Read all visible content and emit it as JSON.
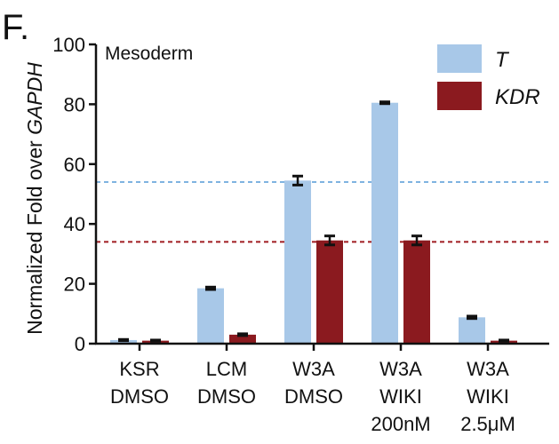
{
  "panel_letter": "F.",
  "chart_data": {
    "type": "bar",
    "annotation": "Mesoderm",
    "ylabel_prefix": "Normalized Fold over ",
    "ylabel_gene": "GAPDH",
    "ylim": [
      0,
      100
    ],
    "yticks": [
      0,
      20,
      40,
      60,
      80,
      100
    ],
    "categories": [
      [
        "KSR",
        "DMSO"
      ],
      [
        "LCM",
        "DMSO"
      ],
      [
        "W3A",
        "DMSO"
      ],
      [
        "W3A",
        "WIKI",
        "200nM"
      ],
      [
        "W3A",
        "WIKI",
        "2.5μM"
      ]
    ],
    "series": [
      {
        "name": "T",
        "color": "#a8c8e8",
        "error_color": "#111111",
        "values": [
          1.2,
          18.5,
          54.5,
          80.5,
          8.8
        ],
        "errors": [
          0.2,
          0.4,
          1.5,
          0.3,
          0.4
        ]
      },
      {
        "name": "KDR",
        "color": "#8b1a1f",
        "error_color": "#111111",
        "values": [
          1.0,
          3.0,
          34.5,
          34.5,
          1.0
        ],
        "errors": [
          0.2,
          0.3,
          1.5,
          1.5,
          0.2
        ]
      }
    ],
    "reference_lines": [
      {
        "value": 54.0,
        "color": "#7fb3e0"
      },
      {
        "value": 34.0,
        "color": "#a01c22"
      }
    ],
    "legend_position": "top-right",
    "grid": false
  }
}
